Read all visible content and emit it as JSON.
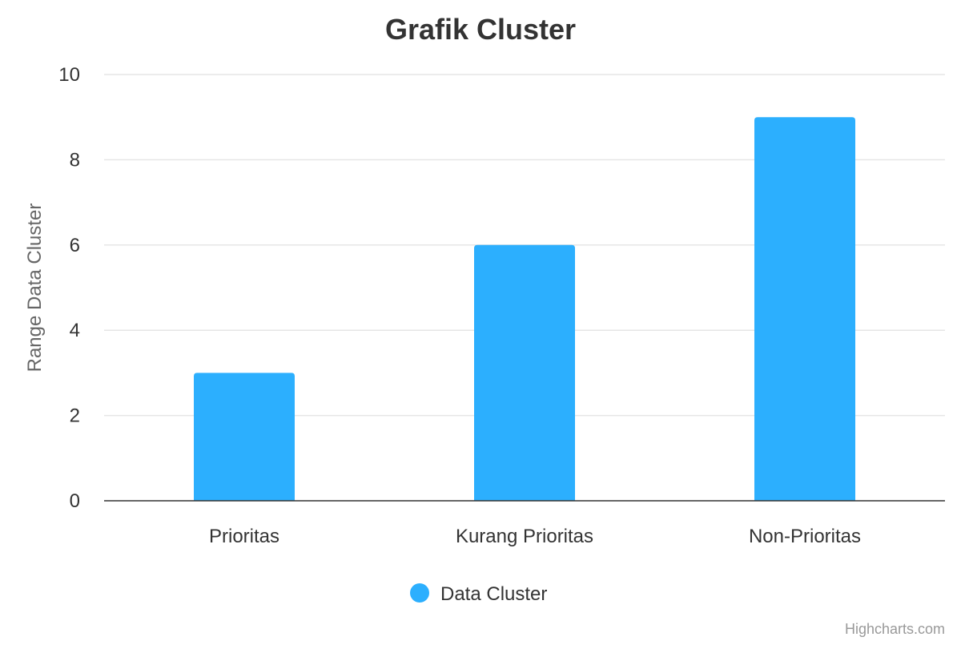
{
  "chart_data": {
    "type": "bar",
    "title": "Grafik Cluster",
    "xlabel": "",
    "ylabel": "Range Data Cluster",
    "categories": [
      "Prioritas",
      "Kurang Prioritas",
      "Non-Prioritas"
    ],
    "series": [
      {
        "name": "Data Cluster",
        "values": [
          3,
          6,
          9
        ]
      }
    ],
    "ylim": [
      0,
      10
    ],
    "yticks": [
      0,
      2,
      4,
      6,
      8,
      10
    ],
    "grid": true,
    "legend_position": "bottom-center",
    "colors": {
      "bar": "#2caffe",
      "grid": "#e6e6e6",
      "axis_line": "#333333"
    }
  },
  "credits": "Highcharts.com"
}
